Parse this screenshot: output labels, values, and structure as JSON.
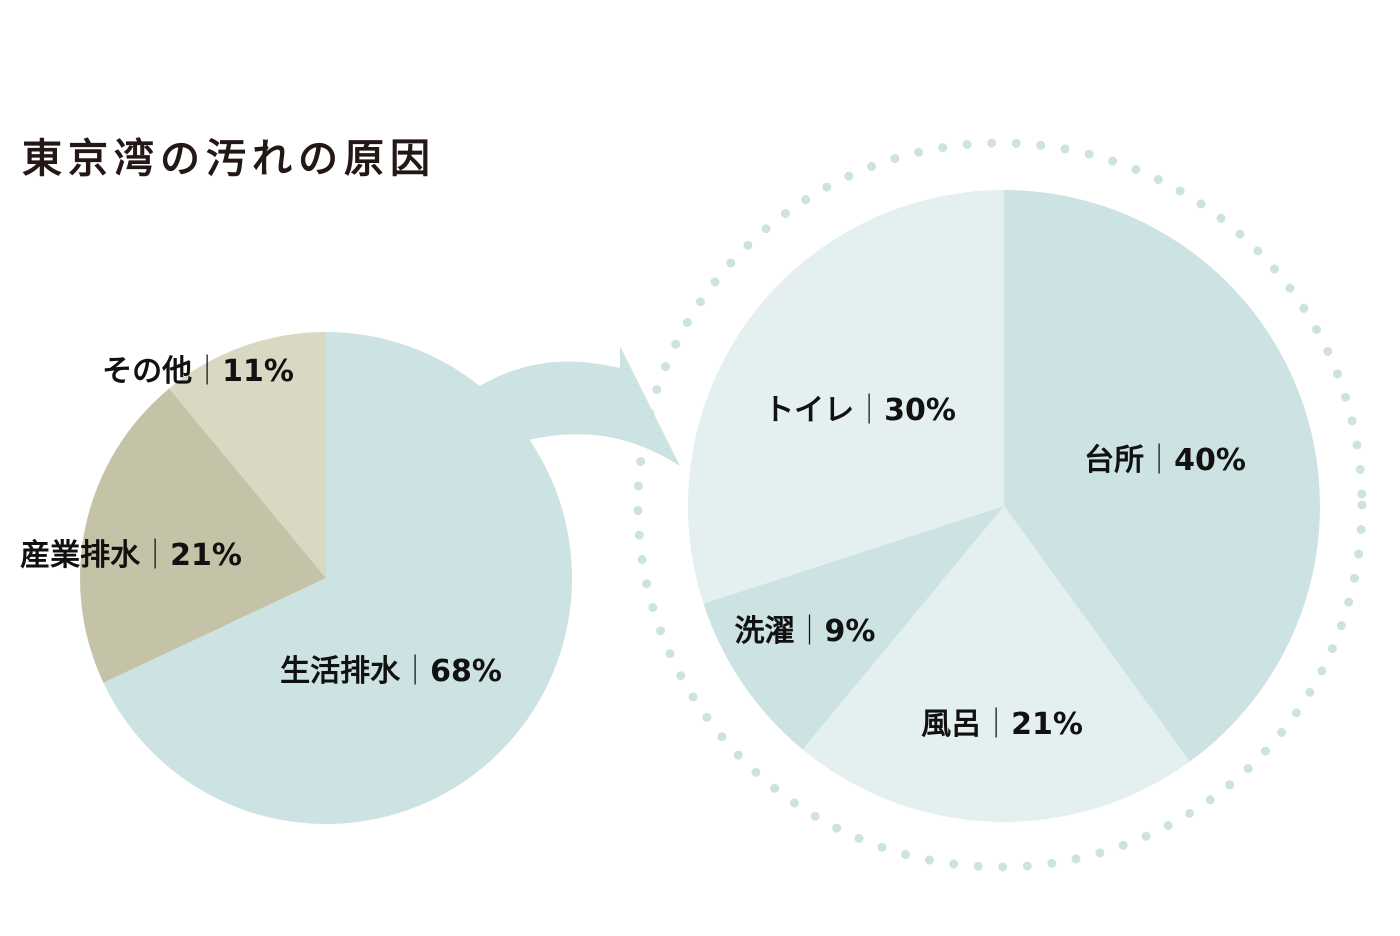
{
  "chart_data": [
    {
      "type": "pie",
      "title": "東京湾の汚れの原因",
      "slices": [
        {
          "label": "生活排水",
          "value": 68,
          "display": "68%",
          "color": "#cde2e2"
        },
        {
          "label": "産業排水",
          "value": 21,
          "display": "21%",
          "color": "#c5c3a7"
        },
        {
          "label": "その他",
          "value": 11,
          "display": "11%",
          "color": "#d9d8c3"
        }
      ]
    },
    {
      "type": "pie",
      "title": "",
      "detail_of": "生活排水",
      "slices": [
        {
          "label": "台所",
          "value": 40,
          "display": "40%",
          "color": "#cde2e2"
        },
        {
          "label": "風呂",
          "value": 21,
          "display": "21%",
          "color": "#e4f0f0"
        },
        {
          "label": "洗濯",
          "value": 9,
          "display": "9%",
          "color": "#cde2e2"
        },
        {
          "label": "トイレ",
          "value": 30,
          "display": "30%",
          "color": "#e4f0f0"
        }
      ]
    }
  ],
  "colors": {
    "title": "#231815",
    "label": "#111111",
    "arrow": "#cde2e2",
    "dotted_ring": "#cde2e2"
  },
  "label_separator": "｜"
}
